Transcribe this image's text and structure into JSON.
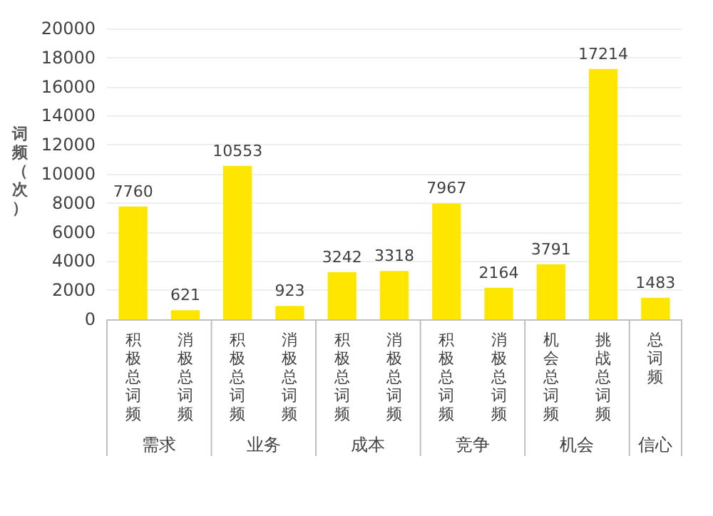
{
  "chart_data": {
    "type": "bar",
    "ylabel": "词频（次）",
    "categories": [
      "积极总词频",
      "消极总词频",
      "积极总词频",
      "消极总词频",
      "积极总词频",
      "消极总词频",
      "积极总词频",
      "消极总词频",
      "机会总词频",
      "挑战总词频",
      "总词频"
    ],
    "values": [
      7760,
      621,
      10553,
      923,
      3242,
      3318,
      7967,
      2164,
      3791,
      17214,
      1483
    ],
    "color": "#ffe600",
    "data_labels": true,
    "grid": "y",
    "ylim": [
      0,
      20000
    ],
    "yticks": [
      0,
      2000,
      4000,
      6000,
      8000,
      10000,
      12000,
      14000,
      16000,
      18000,
      20000
    ],
    "annotations": [
      "需求",
      "业务",
      "成本",
      "竞争",
      "机会",
      "信心"
    ]
  }
}
